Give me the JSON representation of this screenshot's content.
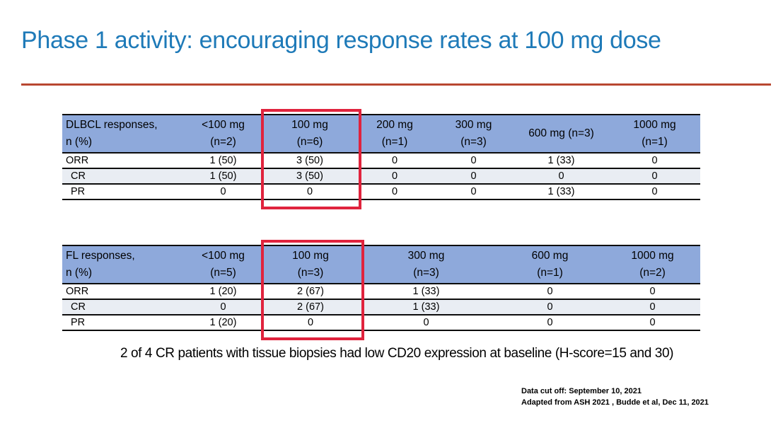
{
  "slide": {
    "title": "Phase 1 activity: encouraging response rates at 100 mg dose",
    "note": "2 of 4 CR patients with tissue biopsies had low CD20 expression at baseline (H-score=15 and 30)",
    "footer": {
      "line1": "Data cut off: September 10, 2021",
      "line2": "Adapted from ASH 2021 , Budde et al,  Dec 11, 2021"
    }
  },
  "colors": {
    "title": "#1E7AB8",
    "divider": "#B84731",
    "table_header_bg": "#8EA9DB",
    "shaded_row_bg": "#E9EDF3",
    "highlight_border": "#E0233D"
  },
  "tables": [
    {
      "id": "dlbcl",
      "row_header": [
        "DLBCL responses,",
        "n (%)"
      ],
      "dose_columns": [
        {
          "dose": "<100 mg",
          "n": "(n=2)",
          "highlighted": false
        },
        {
          "dose": "100 mg",
          "n": "(n=6)",
          "highlighted": true
        },
        {
          "dose": "200 mg",
          "n": "(n=1)",
          "highlighted": false
        },
        {
          "dose": "300 mg",
          "n": "(n=3)",
          "highlighted": false
        },
        {
          "dose": "600 mg (n=3)",
          "n": "",
          "highlighted": false
        },
        {
          "dose": "1000 mg",
          "n": "(n=1)",
          "highlighted": false
        }
      ],
      "rows": [
        {
          "label": "ORR",
          "shaded": false,
          "values": [
            "1 (50)",
            "3 (50)",
            "0",
            "0",
            "1 (33)",
            "0"
          ]
        },
        {
          "label": "CR",
          "shaded": true,
          "values": [
            "1 (50)",
            "3 (50)",
            "0",
            "0",
            "0",
            "0"
          ]
        },
        {
          "label": "PR",
          "shaded": false,
          "values": [
            "0",
            "0",
            "0",
            "0",
            "1 (33)",
            "0"
          ]
        }
      ]
    },
    {
      "id": "fl",
      "row_header": [
        "FL responses,",
        "n (%)"
      ],
      "dose_columns": [
        {
          "dose": "<100 mg",
          "n": "(n=5)",
          "highlighted": false
        },
        {
          "dose": "100 mg",
          "n": "(n=3)",
          "highlighted": true
        },
        {
          "dose": "300 mg",
          "n": "(n=3)",
          "highlighted": false
        },
        {
          "dose": "600 mg",
          "n": "(n=1)",
          "highlighted": false
        },
        {
          "dose": "1000 mg",
          "n": "(n=2)",
          "highlighted": false
        }
      ],
      "rows": [
        {
          "label": "ORR",
          "shaded": false,
          "values": [
            "1 (20)",
            "2 (67)",
            "1 (33)",
            "0",
            "0"
          ]
        },
        {
          "label": "CR",
          "shaded": true,
          "values": [
            "0",
            "2 (67)",
            "1 (33)",
            "0",
            "0"
          ]
        },
        {
          "label": "PR",
          "shaded": false,
          "values": [
            "1 (20)",
            "0",
            "0",
            "0",
            "0"
          ]
        }
      ]
    }
  ]
}
